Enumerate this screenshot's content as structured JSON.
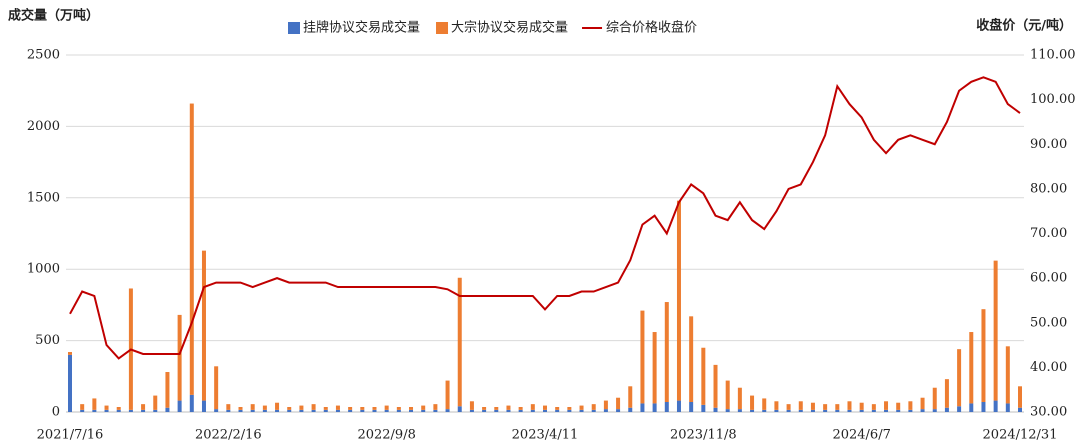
{
  "chart_data": {
    "type": "bar-line",
    "y_label": "成交量（万吨）",
    "y2_label": "收盘价（元/吨）",
    "categories": [
      "2021/7/16",
      null,
      null,
      null,
      null,
      null,
      null,
      null,
      null,
      null,
      null,
      null,
      null,
      "2022/2/16",
      null,
      null,
      null,
      null,
      null,
      null,
      null,
      null,
      null,
      null,
      null,
      null,
      "2022/9/8",
      null,
      null,
      null,
      null,
      null,
      null,
      null,
      null,
      null,
      null,
      null,
      null,
      "2023/4/11",
      null,
      null,
      null,
      null,
      null,
      null,
      null,
      null,
      null,
      null,
      null,
      null,
      "2023/11/8",
      null,
      null,
      null,
      null,
      null,
      null,
      null,
      null,
      null,
      null,
      null,
      null,
      "2024/6/7",
      null,
      null,
      null,
      null,
      null,
      null,
      null,
      null,
      null,
      null,
      null,
      null,
      "2024/12/31"
    ],
    "series": [
      {
        "name": "挂牌协议交易成交量",
        "color": "#4472c4",
        "values": [
          400,
          15,
          15,
          15,
          15,
          15,
          15,
          15,
          30,
          80,
          120,
          80,
          20,
          15,
          15,
          15,
          15,
          15,
          15,
          15,
          15,
          15,
          15,
          15,
          15,
          15,
          15,
          15,
          15,
          15,
          15,
          20,
          40,
          15,
          15,
          15,
          15,
          15,
          15,
          15,
          15,
          15,
          15,
          15,
          20,
          20,
          30,
          60,
          60,
          70,
          80,
          70,
          50,
          30,
          20,
          20,
          15,
          15,
          15,
          15,
          15,
          15,
          15,
          15,
          15,
          15,
          15,
          15,
          15,
          15,
          20,
          20,
          30,
          40,
          60,
          70,
          80,
          60,
          30
        ]
      },
      {
        "name": "大宗协议交易成交量",
        "color": "#ed7d31",
        "values": [
          20,
          40,
          80,
          30,
          20,
          850,
          40,
          100,
          250,
          600,
          2040,
          1050,
          300,
          40,
          20,
          40,
          30,
          50,
          20,
          30,
          40,
          20,
          30,
          20,
          20,
          20,
          30,
          20,
          20,
          30,
          40,
          200,
          900,
          60,
          20,
          20,
          30,
          20,
          40,
          30,
          20,
          20,
          30,
          40,
          60,
          80,
          150,
          650,
          500,
          700,
          1400,
          600,
          400,
          300,
          200,
          150,
          100,
          80,
          60,
          40,
          60,
          50,
          40,
          40,
          60,
          50,
          40,
          60,
          50,
          60,
          80,
          150,
          200,
          400,
          500,
          650,
          980,
          400,
          150
        ]
      },
      {
        "name": "综合价格收盘价",
        "color": "#c00000",
        "type": "line",
        "axis": "y2",
        "values": [
          52,
          57,
          56,
          45,
          42,
          44,
          43,
          43,
          43,
          43,
          50,
          58,
          59,
          59,
          59,
          58,
          59,
          60,
          59,
          59,
          59,
          59,
          58,
          58,
          58,
          58,
          58,
          58,
          58,
          58,
          58,
          57.5,
          56,
          56,
          56,
          56,
          56,
          56,
          56,
          53,
          56,
          56,
          57,
          57,
          58,
          59,
          64,
          72,
          74,
          70,
          77,
          81,
          79,
          74,
          73,
          77,
          73,
          71,
          75,
          80,
          81,
          86,
          92,
          103,
          99,
          96,
          91,
          88,
          91,
          92,
          91,
          90,
          95,
          102,
          104,
          105,
          104,
          99,
          97
        ]
      }
    ],
    "ylim": [
      0,
      2500
    ],
    "yticks": [
      0,
      500,
      1000,
      1500,
      2000,
      2500
    ],
    "y2lim": [
      30,
      110
    ],
    "y2ticks": [
      {
        "value": 30,
        "label": "30.00"
      },
      {
        "value": 40,
        "label": "40.00"
      },
      {
        "value": 50,
        "label": "50.00"
      },
      {
        "value": 60,
        "label": "60.00"
      },
      {
        "value": 70,
        "label": "70.00"
      },
      {
        "value": 80,
        "label": "80.00"
      },
      {
        "value": 90,
        "label": "90.00"
      },
      {
        "value": 100,
        "label": "100.00"
      },
      {
        "value": 110,
        "label": "110.00"
      }
    ],
    "grid": true,
    "stacked": true,
    "legend": "top"
  }
}
